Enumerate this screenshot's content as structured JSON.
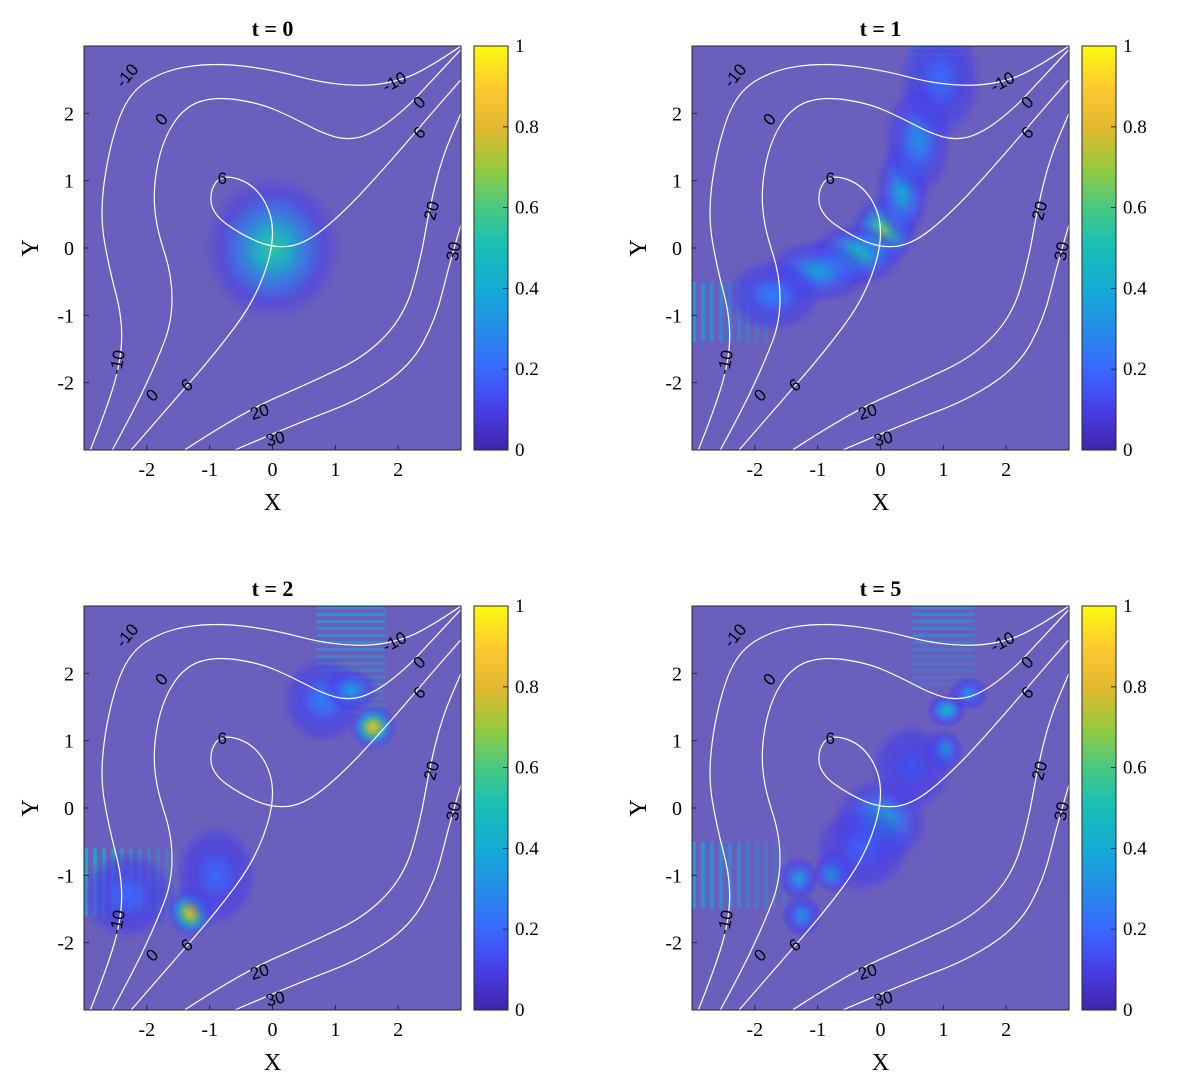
{
  "chart_data": [
    {
      "type": "heatmap",
      "title": "t = 0",
      "xlabel": "X",
      "ylabel": "Y",
      "xlim": [
        -3,
        3
      ],
      "ylim": [
        -3,
        3
      ],
      "xticks": [
        "-2",
        "-1",
        "0",
        "1",
        "2"
      ],
      "yticks": [
        "2",
        "1",
        "0",
        "-1",
        "-2"
      ],
      "colorbar": {
        "min": 0,
        "max": 1,
        "ticks": [
          "0",
          "0.2",
          "0.4",
          "0.6",
          "0.8",
          "1"
        ]
      },
      "contour_levels": [
        "-10",
        "0",
        "6",
        "20",
        "30"
      ],
      "blobs": [
        {
          "x": 0.0,
          "y": 0.0,
          "sx": 0.5,
          "sy": 0.5,
          "v": 0.55
        }
      ],
      "fringes": []
    },
    {
      "type": "heatmap",
      "title": "t = 1",
      "xlabel": "X",
      "ylabel": "Y",
      "xlim": [
        -3,
        3
      ],
      "ylim": [
        -3,
        3
      ],
      "xticks": [
        "-2",
        "-1",
        "0",
        "1",
        "2"
      ],
      "yticks": [
        "2",
        "1",
        "0",
        "-1",
        "-2"
      ],
      "colorbar": {
        "min": 0,
        "max": 1,
        "ticks": [
          "0",
          "0.2",
          "0.4",
          "0.6",
          "0.8",
          "1"
        ]
      },
      "contour_levels": [
        "-10",
        "0",
        "6",
        "20",
        "30"
      ],
      "blobs": [
        {
          "x": 0.05,
          "y": 0.25,
          "sx": 0.25,
          "sy": 0.25,
          "v": 0.65
        },
        {
          "x": -0.4,
          "y": -0.1,
          "sx": 0.35,
          "sy": 0.22,
          "v": 0.5
        },
        {
          "x": -1.0,
          "y": -0.35,
          "sx": 0.4,
          "sy": 0.22,
          "v": 0.35
        },
        {
          "x": -1.7,
          "y": -0.7,
          "sx": 0.35,
          "sy": 0.25,
          "v": 0.25
        },
        {
          "x": 0.35,
          "y": 0.85,
          "sx": 0.2,
          "sy": 0.35,
          "v": 0.4
        },
        {
          "x": 0.6,
          "y": 1.6,
          "sx": 0.25,
          "sy": 0.4,
          "v": 0.3
        },
        {
          "x": 0.95,
          "y": 2.5,
          "sx": 0.3,
          "sy": 0.4,
          "v": 0.2
        }
      ],
      "fringes": [
        {
          "x0": -3.0,
          "x1": -1.6,
          "y0": -1.4,
          "y1": -0.5,
          "orient": "v",
          "v": 0.2
        },
        {
          "x0": 0.45,
          "x1": 1.3,
          "y0": 1.8,
          "y1": 3.0,
          "orient": "h",
          "v": 0.2
        }
      ]
    },
    {
      "type": "heatmap",
      "title": "t = 2",
      "xlabel": "X",
      "ylabel": "Y",
      "xlim": [
        -3,
        3
      ],
      "ylim": [
        -3,
        3
      ],
      "xticks": [
        "-2",
        "-1",
        "0",
        "1",
        "2"
      ],
      "yticks": [
        "2",
        "1",
        "0",
        "-1",
        "-2"
      ],
      "colorbar": {
        "min": 0,
        "max": 1,
        "ticks": [
          "0",
          "0.2",
          "0.4",
          "0.6",
          "0.8",
          "1"
        ]
      },
      "contour_levels": [
        "-10",
        "0",
        "6",
        "20",
        "30"
      ],
      "blobs": [
        {
          "x": -1.3,
          "y": -1.55,
          "sx": 0.18,
          "sy": 0.18,
          "v": 0.82
        },
        {
          "x": 1.6,
          "y": 1.2,
          "sx": 0.18,
          "sy": 0.16,
          "v": 0.82
        },
        {
          "x": -0.9,
          "y": -1.0,
          "sx": 0.3,
          "sy": 0.35,
          "v": 0.2
        },
        {
          "x": 0.8,
          "y": 1.6,
          "sx": 0.3,
          "sy": 0.3,
          "v": 0.25
        },
        {
          "x": 1.25,
          "y": 1.75,
          "sx": 0.2,
          "sy": 0.15,
          "v": 0.35
        },
        {
          "x": -2.3,
          "y": -1.3,
          "sx": 0.35,
          "sy": 0.3,
          "v": 0.2
        }
      ],
      "fringes": [
        {
          "x0": -3.0,
          "x1": -1.5,
          "y0": -1.6,
          "y1": -0.6,
          "orient": "v",
          "v": 0.3
        },
        {
          "x0": 0.7,
          "x1": 1.8,
          "y0": 1.4,
          "y1": 3.0,
          "orient": "h",
          "v": 0.28
        }
      ]
    },
    {
      "type": "heatmap",
      "title": "t = 5",
      "xlabel": "X",
      "ylabel": "Y",
      "xlim": [
        -3,
        3
      ],
      "ylim": [
        -3,
        3
      ],
      "xticks": [
        "-2",
        "-1",
        "0",
        "1",
        "2"
      ],
      "yticks": [
        "2",
        "1",
        "0",
        "-1",
        "-2"
      ],
      "colorbar": {
        "min": 0,
        "max": 1,
        "ticks": [
          "0",
          "0.2",
          "0.4",
          "0.6",
          "0.8",
          "1"
        ]
      },
      "contour_levels": [
        "-10",
        "0",
        "6",
        "20",
        "30"
      ],
      "blobs": [
        {
          "x": 0.0,
          "y": -0.2,
          "sx": 0.35,
          "sy": 0.3,
          "v": 0.42
        },
        {
          "x": -0.75,
          "y": -0.95,
          "sx": 0.15,
          "sy": 0.15,
          "v": 0.42
        },
        {
          "x": -1.3,
          "y": -1.05,
          "sx": 0.15,
          "sy": 0.15,
          "v": 0.35
        },
        {
          "x": -1.25,
          "y": -1.6,
          "sx": 0.15,
          "sy": 0.15,
          "v": 0.3
        },
        {
          "x": 1.05,
          "y": 1.45,
          "sx": 0.15,
          "sy": 0.12,
          "v": 0.45
        },
        {
          "x": 1.0,
          "y": 0.85,
          "sx": 0.15,
          "sy": 0.15,
          "v": 0.35
        },
        {
          "x": 1.4,
          "y": 1.7,
          "sx": 0.15,
          "sy": 0.12,
          "v": 0.3
        },
        {
          "x": 0.5,
          "y": 0.6,
          "sx": 0.3,
          "sy": 0.3,
          "v": 0.15
        },
        {
          "x": -0.3,
          "y": -0.6,
          "sx": 0.35,
          "sy": 0.3,
          "v": 0.18
        }
      ],
      "fringes": [
        {
          "x0": -3.0,
          "x1": -1.5,
          "y0": -1.5,
          "y1": -0.5,
          "orient": "v",
          "v": 0.22
        },
        {
          "x0": 0.5,
          "x1": 1.5,
          "y0": 1.8,
          "y1": 3.0,
          "orient": "h",
          "v": 0.22
        }
      ]
    }
  ]
}
